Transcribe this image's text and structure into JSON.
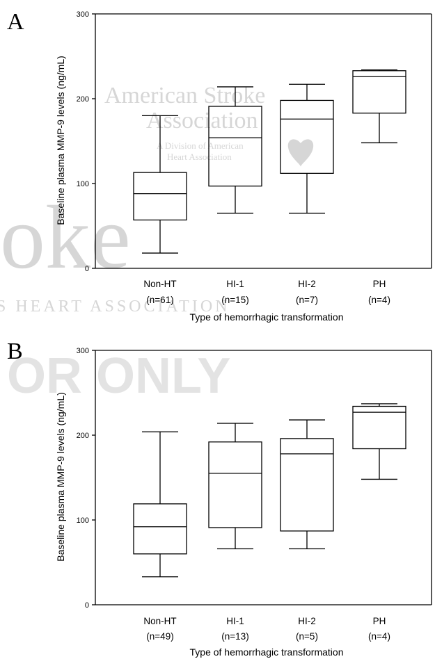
{
  "watermark": {
    "big_word": "oke",
    "heart_line": "S HEART ASSOCIATION",
    "for_only": "OR ONLY",
    "org_line1": "American Stroke",
    "org_line2": "Association",
    "org_line3": "A Division of American",
    "org_line4": "Heart Association",
    "color": "#d6d6d6"
  },
  "chart_data": [
    {
      "panel": "A",
      "type": "box",
      "xlabel": "Type of hemorrhagic transformation",
      "ylabel": "Baseline plasma MMP-9 levels (ng/mL)",
      "ylim": [
        0,
        300
      ],
      "yticks": [
        "0",
        "100",
        "200",
        "300"
      ],
      "categories": [
        "Non-HT",
        "HI-1",
        "HI-2",
        "PH"
      ],
      "n_labels": [
        "(n=61)",
        "(n=15)",
        "(n=7)",
        "(n=4)"
      ],
      "boxes": [
        {
          "min": 18,
          "q1": 57,
          "median": 88,
          "q3": 113,
          "max": 180
        },
        {
          "min": 65,
          "q1": 97,
          "median": 154,
          "q3": 191,
          "max": 214
        },
        {
          "min": 65,
          "q1": 112,
          "median": 176,
          "q3": 198,
          "max": 217
        },
        {
          "min": 148,
          "q1": 183,
          "median": 226,
          "q3": 233,
          "max": 234
        }
      ]
    },
    {
      "panel": "B",
      "type": "box",
      "xlabel": "Type of hemorrhagic transformation",
      "ylabel": "Baseline plasma MMP-9 levels (ng/mL)",
      "ylim": [
        0,
        300
      ],
      "yticks": [
        "0",
        "100",
        "200",
        "300"
      ],
      "categories": [
        "Non-HT",
        "HI-1",
        "HI-2",
        "PH"
      ],
      "n_labels": [
        "(n=49)",
        "(n=13)",
        "(n=5)",
        "(n=4)"
      ],
      "boxes": [
        {
          "min": 33,
          "q1": 60,
          "median": 92,
          "q3": 119,
          "max": 204
        },
        {
          "min": 66,
          "q1": 91,
          "median": 155,
          "q3": 192,
          "max": 214
        },
        {
          "min": 66,
          "q1": 87,
          "median": 178,
          "q3": 196,
          "max": 218
        },
        {
          "min": 148,
          "q1": 184,
          "median": 227,
          "q3": 234,
          "max": 237
        }
      ]
    }
  ]
}
